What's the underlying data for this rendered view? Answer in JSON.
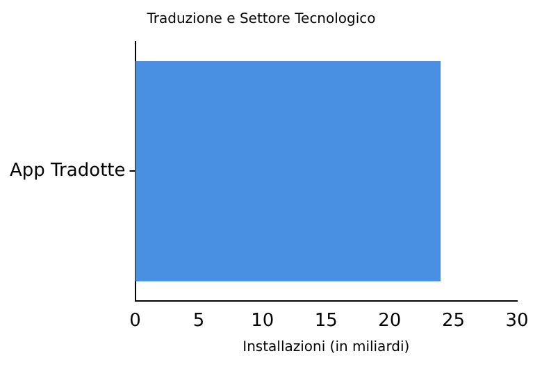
{
  "chart_data": {
    "type": "bar",
    "orientation": "horizontal",
    "title": "Traduzione e Settore Tecnologico",
    "xlabel": "Installazioni (in miliardi)",
    "categories": [
      "App Tradotte"
    ],
    "values": [
      24
    ],
    "color": "#4a90e2",
    "xlim": [
      0,
      30
    ],
    "xticks": [
      0,
      5,
      10,
      15,
      20,
      25,
      30
    ],
    "grid": false,
    "legend": false
  }
}
